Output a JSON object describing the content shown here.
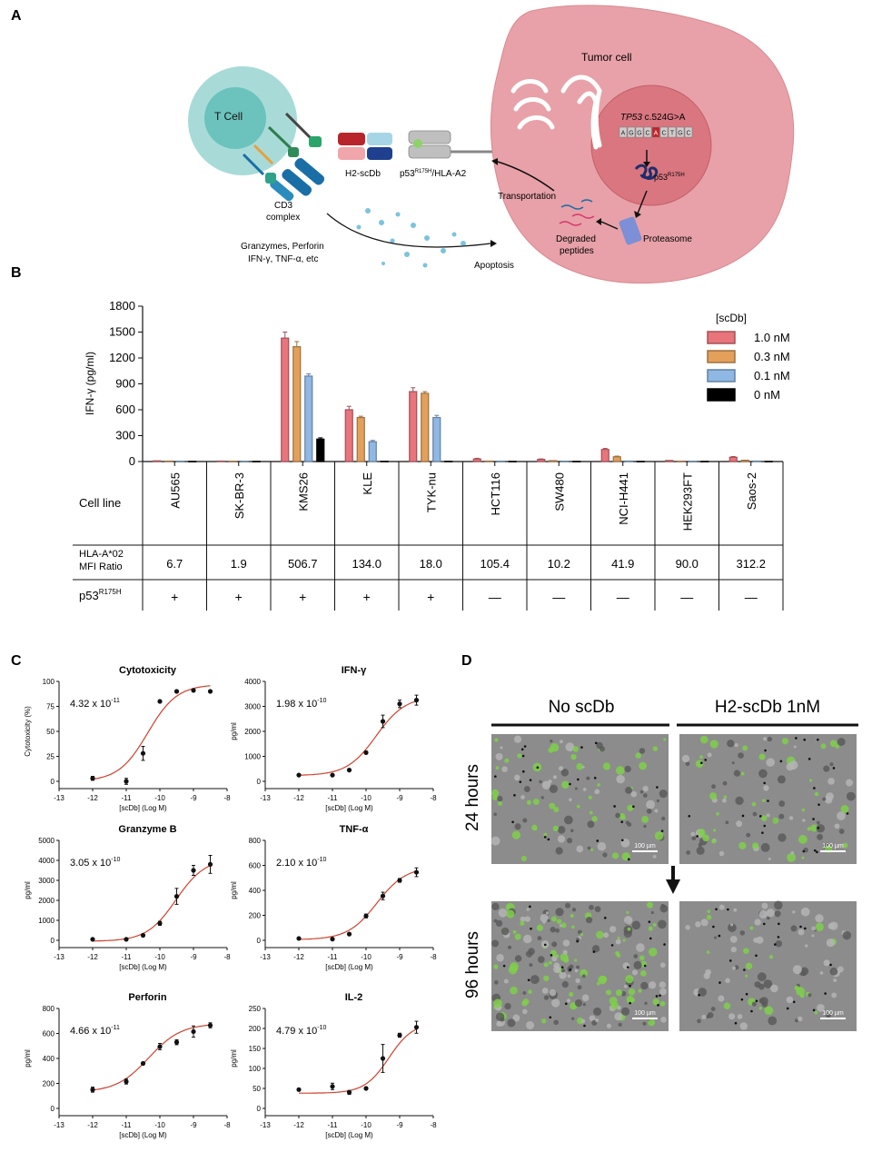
{
  "panels": {
    "a": "A",
    "b": "B",
    "c": "C",
    "d": "D"
  },
  "schematic": {
    "t_cell": "T Cell",
    "cd3_line1": "CD3",
    "cd3_line2": "complex",
    "h2_scdb": "H2-scDb",
    "p53_hla_prefix": "p53",
    "p53_hla_sup": "R175H",
    "p53_hla_suffix": "/HLA-A2",
    "tumor_cell": "Tumor cell",
    "tp53_gene": "TP53",
    "tp53_mut": " c.524G>A",
    "seq_letters": [
      "A",
      "G",
      "G",
      "C",
      "A",
      "C",
      "T",
      "G",
      "C"
    ],
    "p53_label": "p53",
    "p53_sup": "R175H",
    "proteasome": "Proteasome",
    "degraded_line1": "Degraded",
    "degraded_line2": "peptides",
    "transportation": "Transportation",
    "effectors_line1": "Granzymes, Perforin",
    "effectors_line2": "IFN-γ, TNF-α, etc",
    "apoptosis": "Apoptosis"
  },
  "panel_b": {
    "chart_data": {
      "type": "bar",
      "ylabel": "IFN-γ (pg/ml)",
      "ylim": [
        0,
        1800
      ],
      "yticks": [
        "0",
        "300",
        "600",
        "900",
        "1200",
        "1500",
        "1800"
      ],
      "legend_title": "[scDb]",
      "categories": [
        "AU565",
        "SK-BR-3",
        "KMS26",
        "KLE",
        "TYK-nu",
        "HCT116",
        "SW480",
        "NCI-H441",
        "HEK293FT",
        "Saos-2"
      ],
      "series": [
        {
          "name": "1.0 nM",
          "color": "#e8747c",
          "values": [
            8,
            5,
            1430,
            600,
            810,
            30,
            25,
            140,
            12,
            50
          ],
          "errors": [
            5,
            4,
            70,
            40,
            45,
            8,
            6,
            12,
            4,
            8
          ]
        },
        {
          "name": "0.3 nM",
          "color": "#e2a05b",
          "values": [
            5,
            3,
            1330,
            510,
            790,
            5,
            10,
            55,
            4,
            15
          ],
          "errors": [
            3,
            3,
            60,
            15,
            20,
            3,
            3,
            8,
            2,
            4
          ]
        },
        {
          "name": "0.1 nM",
          "color": "#8fb8e4",
          "values": [
            3,
            2,
            990,
            230,
            510,
            3,
            4,
            5,
            2,
            5
          ],
          "errors": [
            2,
            2,
            25,
            15,
            25,
            2,
            2,
            2,
            1,
            2
          ]
        },
        {
          "name": "0 nM",
          "color": "#000000",
          "values": [
            2,
            2,
            260,
            3,
            3,
            2,
            2,
            2,
            2,
            2
          ],
          "errors": [
            1,
            1,
            15,
            1,
            1,
            1,
            1,
            1,
            1,
            1
          ]
        }
      ]
    },
    "table": {
      "cell_line_label": "Cell line",
      "hla_label_line1": "HLA-A*02",
      "hla_label_line2": "MFI Ratio",
      "p53_label": "p53",
      "p53_sup": "R175H",
      "mfi": [
        "6.7",
        "1.9",
        "506.7",
        "134.0",
        "18.0",
        "105.4",
        "10.2",
        "41.9",
        "90.0",
        "312.2"
      ],
      "p53_status": [
        "+",
        "+",
        "+",
        "+",
        "+",
        "—",
        "—",
        "—",
        "—",
        "—"
      ]
    }
  },
  "panel_c": {
    "chart_data": [
      {
        "type": "scatter",
        "title": "Cytotoxicity",
        "ylabel": "Cytotoxicity (%)",
        "xlabel": "[scDb] (Log M)",
        "ec50": "4.32 x 10",
        "ec50_exp": "-11",
        "ylim": [
          0,
          100
        ],
        "yticks": [
          "0",
          "25",
          "50",
          "75",
          "100"
        ],
        "xlim": [
          -13,
          -8
        ],
        "xticks": [
          "-13",
          "-12",
          "-11",
          "-10",
          "-9",
          "-8"
        ],
        "x": [
          -12,
          -11,
          -10.5,
          -10,
          -9.5,
          -9,
          -8.5
        ],
        "y": [
          3,
          0,
          28,
          80,
          90,
          91,
          90
        ],
        "errors": [
          2,
          3,
          7,
          1,
          1,
          1,
          1
        ],
        "fit": {
          "bottom": 0,
          "top": 97,
          "logec50": -10.36,
          "hill": 1.0
        }
      },
      {
        "type": "scatter",
        "title": "IFN-γ",
        "ylabel": "pg/ml",
        "xlabel": "[scDb] (Log M)",
        "ec50": "1.98 x 10",
        "ec50_exp": "-10",
        "ylim": [
          0,
          4000
        ],
        "yticks": [
          "0",
          "1000",
          "2000",
          "3000",
          "4000"
        ],
        "xlim": [
          -13,
          -8
        ],
        "xticks": [
          "-13",
          "-12",
          "-11",
          "-10",
          "-9",
          "-8"
        ],
        "x": [
          -12,
          -11,
          -10.5,
          -10,
          -9.5,
          -9,
          -8.5
        ],
        "y": [
          250,
          250,
          450,
          1150,
          2400,
          3100,
          3250
        ],
        "errors": [
          20,
          20,
          30,
          50,
          250,
          150,
          200
        ],
        "fit": {
          "bottom": 230,
          "top": 3400,
          "logec50": -9.7,
          "hill": 1.0
        }
      },
      {
        "type": "scatter",
        "title": "Granzyme B",
        "ylabel": "pg/ml",
        "xlabel": "[scDb] (Log M)",
        "ec50": "3.05 x 10",
        "ec50_exp": "-10",
        "ylim": [
          0,
          5000
        ],
        "yticks": [
          "0",
          "1000",
          "2000",
          "3000",
          "4000",
          "5000"
        ],
        "xlim": [
          -13,
          -8
        ],
        "xticks": [
          "-13",
          "-12",
          "-11",
          "-10",
          "-9",
          "-8"
        ],
        "x": [
          -12,
          -11,
          -10.5,
          -10,
          -9.5,
          -9,
          -8.5
        ],
        "y": [
          50,
          50,
          250,
          850,
          2200,
          3500,
          3800
        ],
        "errors": [
          20,
          20,
          30,
          100,
          400,
          250,
          450
        ],
        "fit": {
          "bottom": -50,
          "top": 4100,
          "logec50": -9.52,
          "hill": 1.0
        }
      },
      {
        "type": "scatter",
        "title": "TNF-α",
        "ylabel": "pg/ml",
        "xlabel": "[scDb] (Log M)",
        "ec50": "2.10 x 10",
        "ec50_exp": "-10",
        "ylim": [
          0,
          800
        ],
        "yticks": [
          "0",
          "200",
          "400",
          "600",
          "800"
        ],
        "xlim": [
          -13,
          -8
        ],
        "xticks": [
          "-13",
          "-12",
          "-11",
          "-10",
          "-9",
          "-8"
        ],
        "x": [
          -12,
          -11,
          -10.5,
          -10,
          -9.5,
          -9,
          -8.5
        ],
        "y": [
          15,
          10,
          50,
          195,
          355,
          480,
          545
        ],
        "errors": [
          5,
          5,
          10,
          15,
          30,
          15,
          35
        ],
        "fit": {
          "bottom": 5,
          "top": 590,
          "logec50": -9.68,
          "hill": 1.0
        }
      },
      {
        "type": "scatter",
        "title": "Perforin",
        "ylabel": "pg/ml",
        "xlabel": "[scDb] (Log M)",
        "ec50": "4.66 x 10",
        "ec50_exp": "-11",
        "ylim": [
          0,
          800
        ],
        "yticks": [
          "0",
          "200",
          "400",
          "600",
          "800"
        ],
        "xlim": [
          -13,
          -8
        ],
        "xticks": [
          "-13",
          "-12",
          "-11",
          "-10",
          "-9",
          "-8"
        ],
        "x": [
          -12,
          -11,
          -10.5,
          -10,
          -9.5,
          -9,
          -8.5
        ],
        "y": [
          150,
          215,
          360,
          495,
          530,
          615,
          665
        ],
        "errors": [
          20,
          20,
          10,
          25,
          20,
          45,
          20
        ],
        "fit": {
          "bottom": 130,
          "top": 680,
          "logec50": -10.33,
          "hill": 0.9
        }
      },
      {
        "type": "scatter",
        "title": "IL-2",
        "ylabel": "pg/ml",
        "xlabel": "[scDb] (Log M)",
        "ec50": "4.79 x 10",
        "ec50_exp": "-10",
        "ylim": [
          0,
          250
        ],
        "yticks": [
          "0",
          "50",
          "100",
          "150",
          "200",
          "250"
        ],
        "xlim": [
          -13,
          -8
        ],
        "xticks": [
          "-13",
          "-12",
          "-11",
          "-10",
          "-9",
          "-8"
        ],
        "x": [
          -12,
          -11,
          -10.5,
          -10,
          -9.5,
          -9,
          -8.5
        ],
        "y": [
          47,
          55,
          40,
          50,
          125,
          183,
          203
        ],
        "errors": [
          2,
          8,
          5,
          3,
          35,
          5,
          15
        ],
        "fit": {
          "bottom": 38,
          "top": 215,
          "logec50": -9.32,
          "hill": 1.2
        }
      }
    ]
  },
  "panel_d": {
    "col1": "No scDb",
    "col2": "H2-scDb 1nM",
    "row1": "24 hours",
    "row2": "96 hours",
    "scale_bar": "100 µm"
  },
  "colors": {
    "tcell": "#9fd6d4",
    "tcell_nucleus": "#6cc2bc",
    "tumor": "#e79aa1",
    "tumor_dark": "#d97680",
    "fit_line": "#d0412f",
    "micro_bg": "#8a8a8a",
    "micro_green": "#73d13d"
  }
}
